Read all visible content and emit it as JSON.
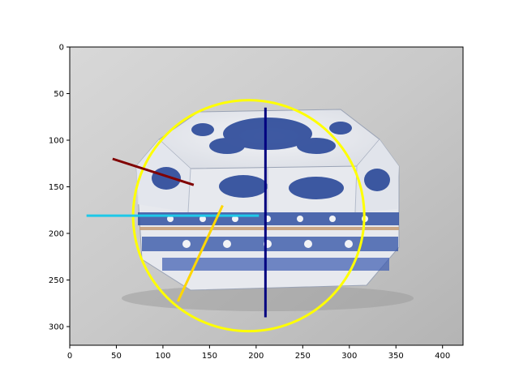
{
  "chart_data": {
    "type": "image-with-annotations",
    "xlim": [
      0,
      422
    ],
    "ylim": [
      320,
      0
    ],
    "x_ticks": [
      0,
      50,
      100,
      150,
      200,
      250,
      300,
      350,
      400
    ],
    "y_ticks": [
      0,
      50,
      100,
      150,
      200,
      250,
      300
    ],
    "image_subject": "blue-and-white porcelain octagonal covered box",
    "annotations": [
      {
        "shape": "circle",
        "color": "#ffff00",
        "cx": 192,
        "cy": 181,
        "r": 124
      },
      {
        "shape": "line",
        "color": "#000080",
        "x1": 210,
        "y1": 65,
        "x2": 210,
        "y2": 290
      },
      {
        "shape": "line",
        "color": "#800000",
        "x1": 46,
        "y1": 120,
        "x2": 133,
        "y2": 148
      },
      {
        "shape": "line",
        "color": "#1ec8e8",
        "x1": 18,
        "y1": 181,
        "x2": 203,
        "y2": 181
      },
      {
        "shape": "line",
        "color": "#ffd700",
        "x1": 116,
        "y1": 273,
        "x2": 164,
        "y2": 170
      }
    ]
  }
}
